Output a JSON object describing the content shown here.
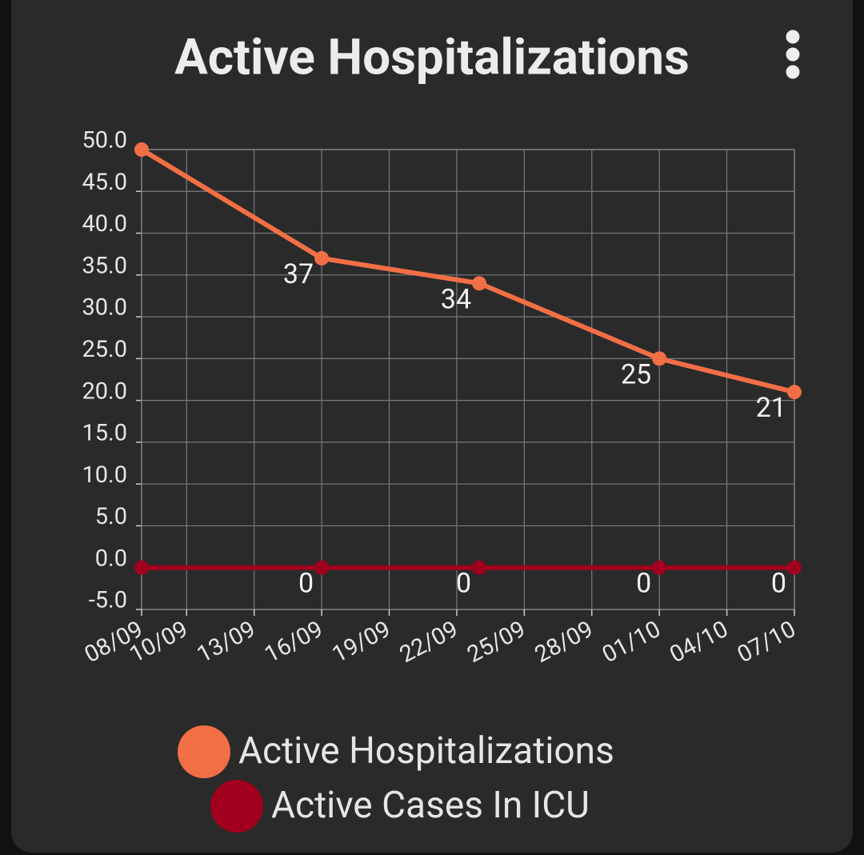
{
  "chart_data": {
    "type": "line",
    "title": "Active Hospitalizations",
    "x": [
      "08/09",
      "16/09",
      "23/09",
      "01/10",
      "07/10"
    ],
    "xlim": [
      "08/09",
      "07/10"
    ],
    "xticks": [
      "08/09",
      "10/09",
      "13/09",
      "16/09",
      "19/09",
      "22/09",
      "25/09",
      "28/09",
      "01/10",
      "04/10",
      "07/10"
    ],
    "ylim": [
      -5,
      50
    ],
    "yticks": [
      {
        "value": -5,
        "label": "-5.0"
      },
      {
        "value": 0,
        "label": "0.0"
      },
      {
        "value": 5,
        "label": "5.0"
      },
      {
        "value": 10,
        "label": "10.0"
      },
      {
        "value": 15,
        "label": "15.0"
      },
      {
        "value": 20,
        "label": "20.0"
      },
      {
        "value": 25,
        "label": "25.0"
      },
      {
        "value": 30,
        "label": "30.0"
      },
      {
        "value": 35,
        "label": "35.0"
      },
      {
        "value": 40,
        "label": "40.0"
      },
      {
        "value": 45,
        "label": "45.0"
      },
      {
        "value": 50,
        "label": "50.0"
      }
    ],
    "grid": true,
    "series": [
      {
        "name": "Active Hospitalizations",
        "color": "#f26f45",
        "values": [
          50,
          37,
          34,
          25,
          21
        ],
        "value_labels": [
          null,
          "37",
          "34",
          "25",
          "21"
        ]
      },
      {
        "name": "Active Cases In ICU",
        "color": "#a0001e",
        "values": [
          0,
          0,
          0,
          0,
          0
        ],
        "value_labels": [
          null,
          "0",
          "0",
          "0",
          "0"
        ]
      }
    ]
  }
}
